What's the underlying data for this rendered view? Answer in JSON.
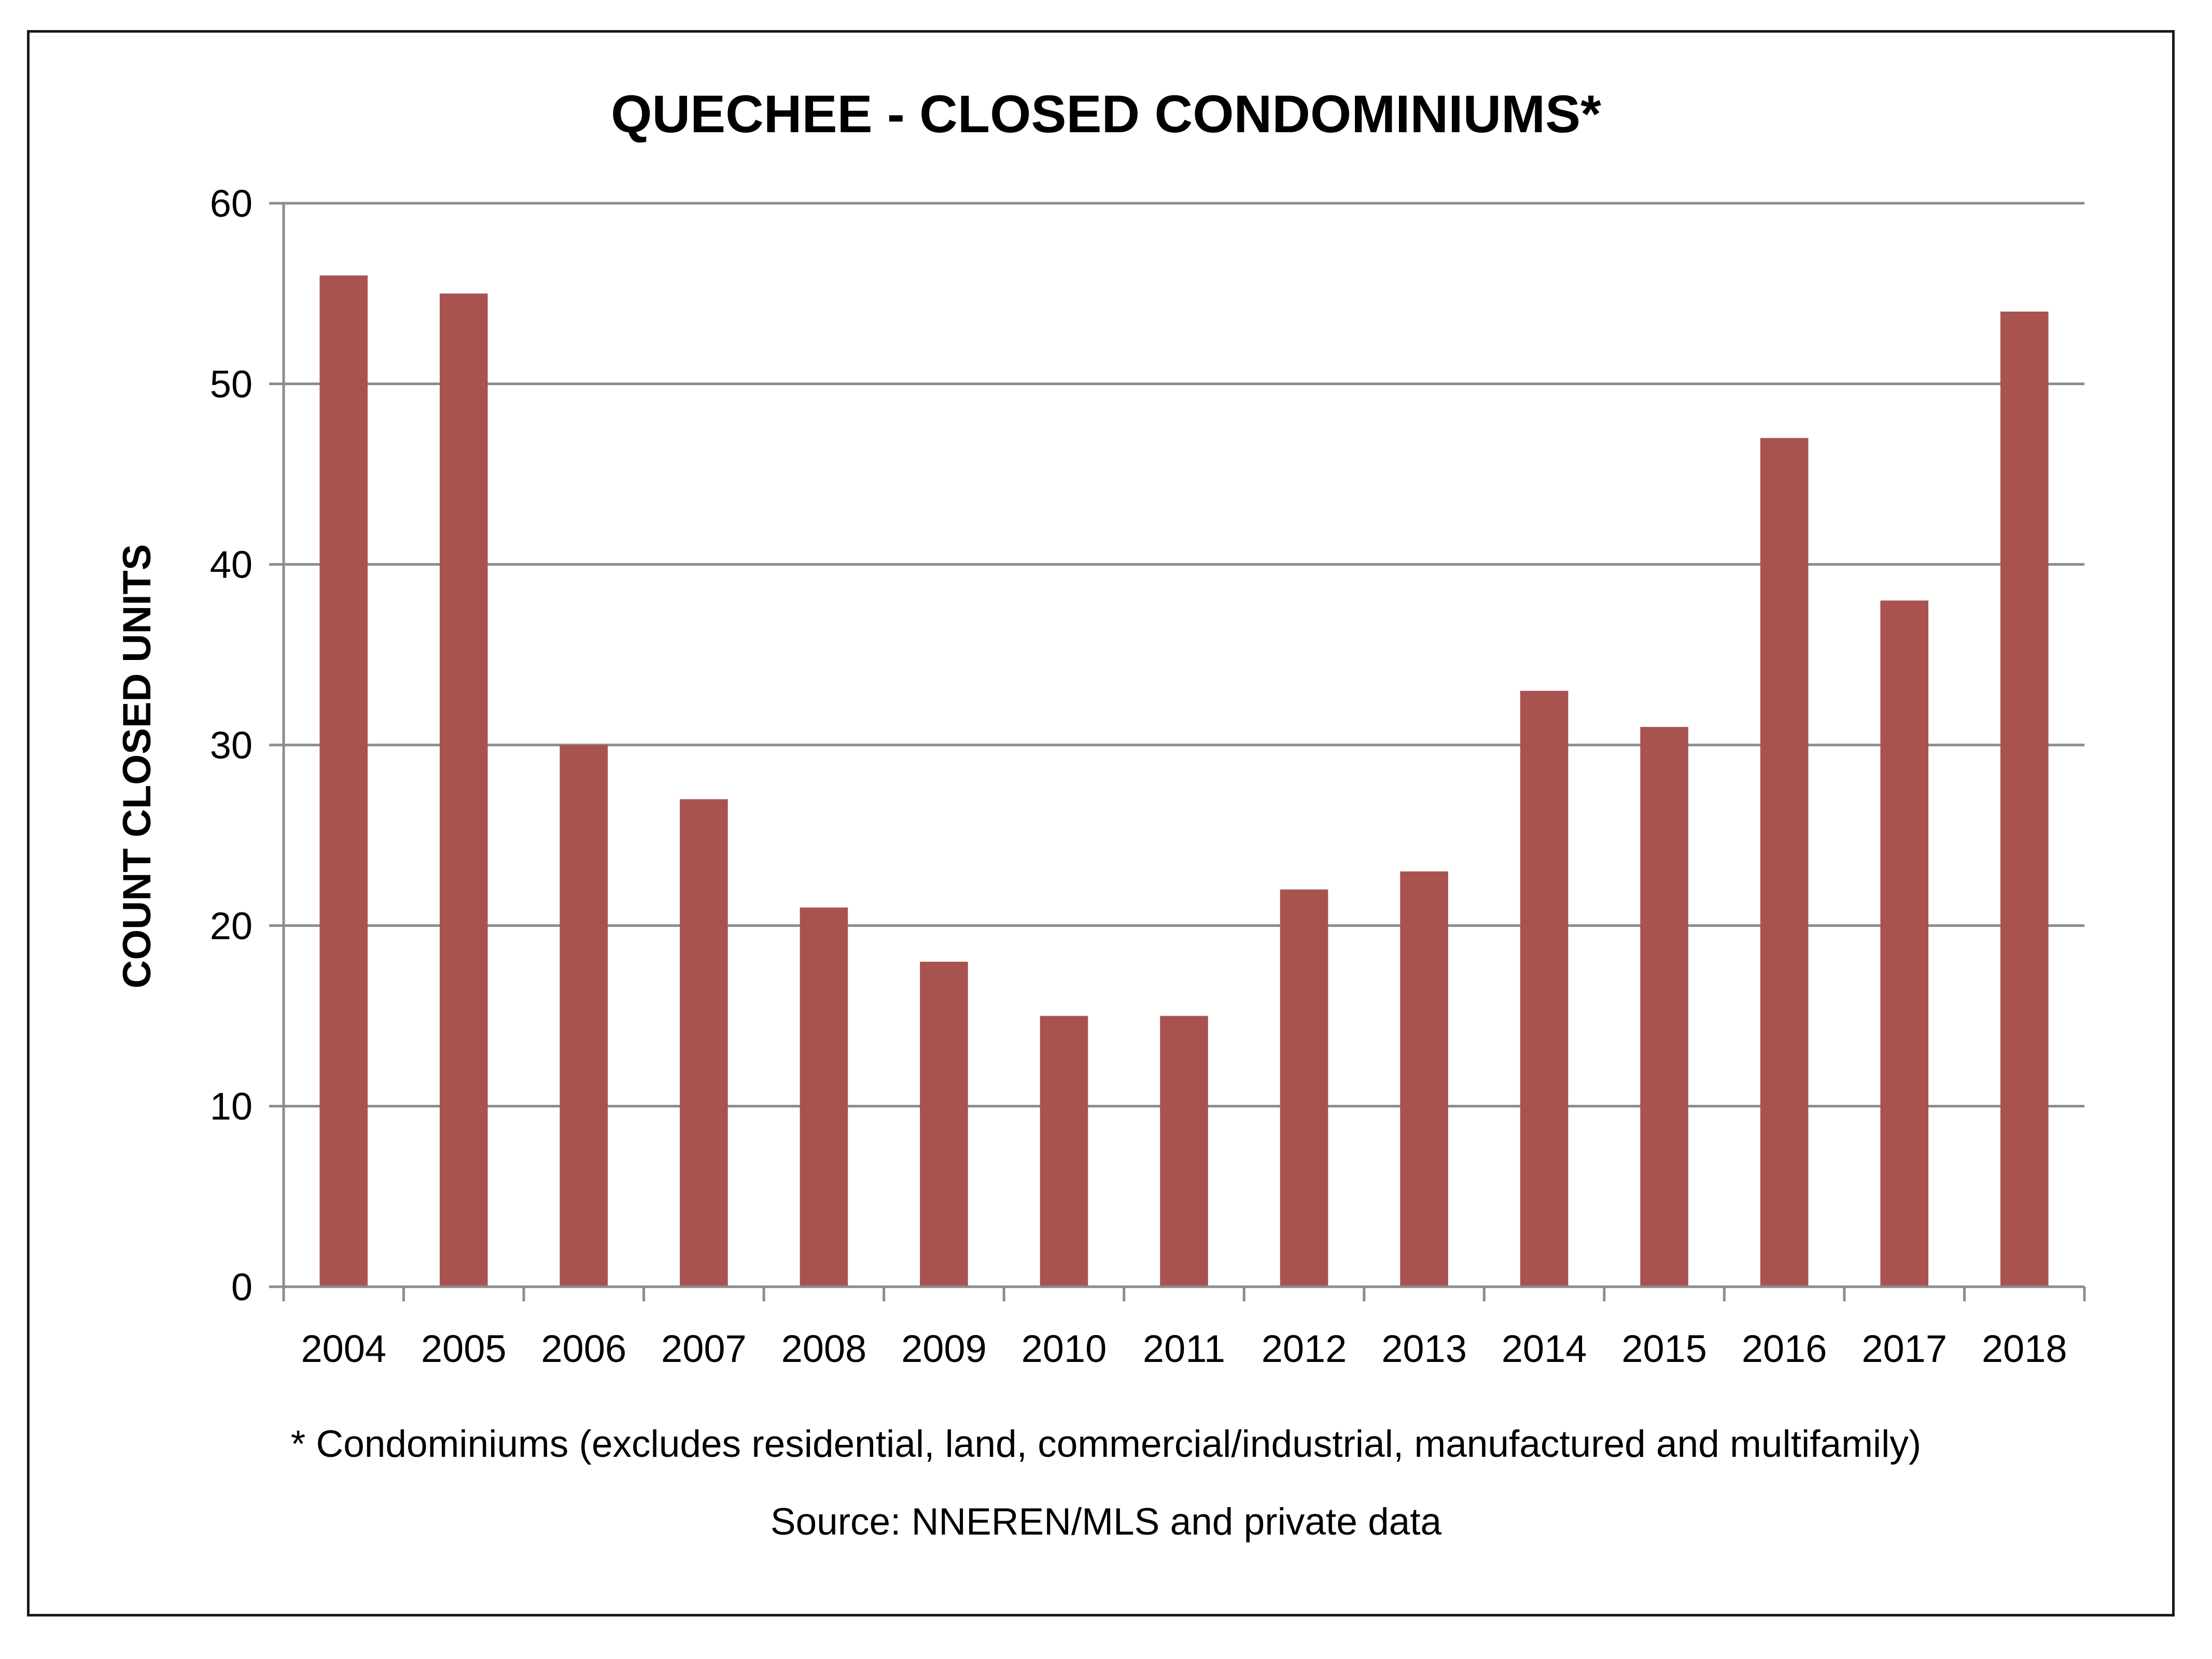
{
  "chart_data": {
    "type": "bar",
    "title": "QUECHEE - CLOSED CONDOMINIUMS*",
    "ylabel": "COUNT CLOSED UNITS",
    "xlabel": "",
    "categories": [
      "2004",
      "2005",
      "2006",
      "2007",
      "2008",
      "2009",
      "2010",
      "2011",
      "2012",
      "2013",
      "2014",
      "2015",
      "2016",
      "2017",
      "2018"
    ],
    "values": [
      56,
      55,
      30,
      27,
      21,
      18,
      15,
      15,
      22,
      23,
      33,
      31,
      47,
      38,
      54
    ],
    "ylim": [
      0,
      60
    ],
    "yticks": [
      "0",
      "10",
      "20",
      "30",
      "40",
      "50",
      "60"
    ],
    "grid": true,
    "legend": "none",
    "bar_color": "#a85350",
    "gridline_color": "#8c8c8c",
    "footnote": "* Condominiums (excludes residential, land, commercial/industrial, manufactured and multifamily)",
    "source": "Source: NNEREN/MLS and private data"
  }
}
